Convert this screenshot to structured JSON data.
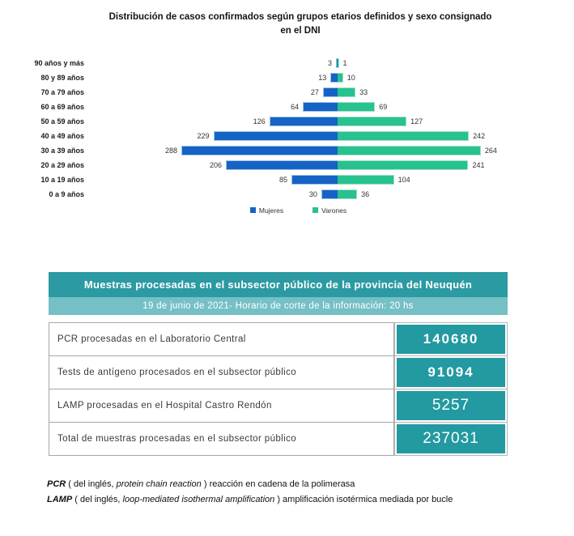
{
  "colors": {
    "mujeres": "#1663c5",
    "varones": "#27c28f",
    "table_header": "#2b9aa2",
    "table_subheader": "#74c0c5",
    "value_cell": "#2399a1"
  },
  "chart_data": [
    {
      "type": "bar",
      "subtype": "population-pyramid",
      "orientation": "horizontal",
      "title": "Distribución de casos confirmados según grupos etarios definidos y sexo consignado en el DNI",
      "categories": [
        "90 años y más",
        "80 y 89 años",
        "70 a 79 años",
        "60 a 69 años",
        "50 a 59 años",
        "40 a 49 años",
        "30 a 39 años",
        "20 a 29 años",
        "10 a 19 años",
        "0 a 9 años"
      ],
      "series": [
        {
          "name": "Mujeres",
          "color": "#1663c5",
          "values": [
            3,
            13,
            27,
            64,
            126,
            229,
            288,
            206,
            85,
            30
          ]
        },
        {
          "name": "Varones",
          "color": "#27c28f",
          "values": [
            1,
            10,
            33,
            69,
            127,
            242,
            264,
            241,
            104,
            36
          ]
        }
      ],
      "data_labels": true,
      "legend_position": "bottom",
      "axis": "none",
      "xlim_left": 300,
      "xlim_right": 300
    },
    {
      "type": "table",
      "title": "Muestras procesadas en el subsector público de la provincia del Neuquén",
      "subtitle": "19 de junio de 2021- Horario de corte de la información: 20 hs",
      "rows": [
        {
          "label": "PCR procesadas en el Laboratorio Central",
          "value": "140680",
          "bold": true
        },
        {
          "label": "Tests de antígeno procesados en el subsector público",
          "value": "91094",
          "bold": true
        },
        {
          "label": "LAMP procesadas en el Hospital Castro Rendón",
          "value": "5257",
          "bold": false
        },
        {
          "label": "Total de muestras procesadas en el subsector público",
          "value": "237031",
          "bold": false
        }
      ]
    }
  ],
  "footnotes": [
    {
      "term": "PCR",
      "prefix": "( del inglés,",
      "english": "protein chain reaction",
      "suffix": ") reacción en cadena de la polimerasa"
    },
    {
      "term": "LAMP",
      "prefix": "( del inglés,",
      "english": "loop-mediated isothermal amplification",
      "suffix": ") amplificación isotérmica mediada por bucle"
    }
  ]
}
